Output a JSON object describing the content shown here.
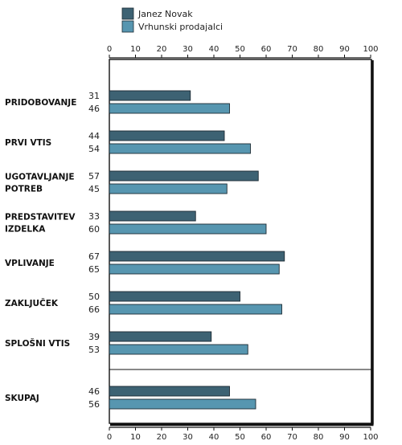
{
  "chart_data": {
    "type": "bar",
    "orientation": "horizontal",
    "categories": [
      "PRIDOBOVANJE",
      "PRVI VTIS",
      "UGOTAVLJANJE POTREB",
      "PREDSTAVITEV IZDELKA",
      "VPLIVANJE",
      "ZAKLJUČEK",
      "SPLOŠNI VTIS",
      "SKUPAJ"
    ],
    "category_lines": [
      [
        "PRIDOBOVANJE"
      ],
      [
        "PRVI VTIS"
      ],
      [
        "UGOTAVLJANJE",
        "POTREB"
      ],
      [
        "PREDSTAVITEV",
        "IZDELKA"
      ],
      [
        "VPLIVANJE"
      ],
      [
        "ZAKLJUČEK"
      ],
      [
        "SPLOŠNI VTIS"
      ],
      [
        "SKUPAJ"
      ]
    ],
    "series": [
      {
        "name": "Janez Novak",
        "color": "#3d6273",
        "values": [
          31,
          44,
          57,
          33,
          67,
          50,
          39,
          46
        ]
      },
      {
        "name": "Vrhunski prodajalci",
        "color": "#5796b0",
        "values": [
          46,
          54,
          45,
          60,
          65,
          66,
          53,
          56
        ]
      }
    ],
    "xlim": [
      0,
      100
    ],
    "ticks": [
      0,
      10,
      20,
      30,
      40,
      50,
      60,
      70,
      80,
      90,
      100
    ],
    "tick_labels_position": "top-and-bottom",
    "legend_position": "top",
    "separator_before_last_category": true,
    "grid": false
  }
}
